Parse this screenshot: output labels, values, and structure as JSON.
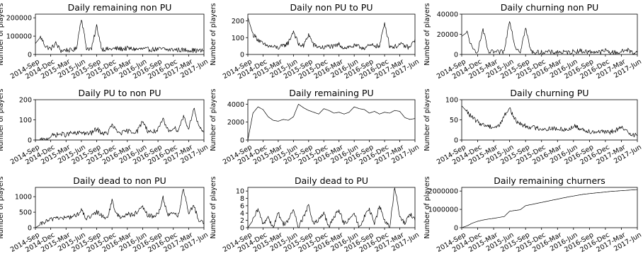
{
  "line_color": "#000000",
  "x_tick_labels": [
    "2014-Sep",
    "2014-Dec",
    "2015-Mar",
    "2015-Jun",
    "2015-Sep",
    "2015-Dec",
    "2016-Mar",
    "2016-Jun",
    "2016-Sep",
    "2016-Dec",
    "2017-Mar",
    "2017-Jun"
  ],
  "chart_data": [
    {
      "id": "remaining_non_pu",
      "type": "line",
      "title": "Daily remaining non PU",
      "xlabel": "",
      "ylabel": "Number of players",
      "x_range": [
        "2014-Sep",
        "2017-Jun"
      ],
      "ylim": [
        0,
        220000
      ],
      "y_ticks": [
        0,
        100000,
        200000
      ],
      "y_tick_labels": [
        "0",
        "100000",
        "200000"
      ],
      "x": [
        "2014-Sep",
        "2014-Oct",
        "2014-Nov",
        "2014-Dec",
        "2015-Jan",
        "2015-Feb",
        "2015-Mar",
        "2015-Apr",
        "2015-May",
        "2015-Jun",
        "2015-Jul",
        "2015-Aug",
        "2015-Sep",
        "2015-Oct",
        "2015-Nov",
        "2015-Dec",
        "2016-Jan",
        "2016-Feb",
        "2016-Mar",
        "2016-Apr",
        "2016-May",
        "2016-Jun",
        "2016-Jul",
        "2016-Aug",
        "2016-Sep",
        "2016-Oct",
        "2016-Nov",
        "2016-Dec",
        "2017-Jan",
        "2017-Feb",
        "2017-Mar",
        "2017-Apr",
        "2017-May",
        "2017-Jun"
      ],
      "values": [
        60000,
        95000,
        45000,
        30000,
        60000,
        20000,
        25000,
        22000,
        30000,
        200000,
        35000,
        30000,
        155000,
        30000,
        28000,
        30000,
        32000,
        30000,
        33000,
        30000,
        28000,
        30000,
        27000,
        28000,
        28000,
        30000,
        25000,
        27000,
        25000,
        24000,
        25000,
        22000,
        20000,
        20000
      ]
    },
    {
      "id": "non_pu_to_pu",
      "type": "line",
      "title": "Daily non PU to PU",
      "xlabel": "",
      "ylabel": "Number of players",
      "x_range": [
        "2014-Sep",
        "2017-Jun"
      ],
      "ylim": [
        0,
        240
      ],
      "y_ticks": [
        0,
        100,
        200
      ],
      "y_tick_labels": [
        "0",
        "100",
        "200"
      ],
      "x": [
        "2014-Sep",
        "2014-Oct",
        "2014-Nov",
        "2014-Dec",
        "2015-Jan",
        "2015-Feb",
        "2015-Mar",
        "2015-Apr",
        "2015-May",
        "2015-Jun",
        "2015-Jul",
        "2015-Aug",
        "2015-Sep",
        "2015-Oct",
        "2015-Nov",
        "2015-Dec",
        "2016-Jan",
        "2016-Feb",
        "2016-Mar",
        "2016-Apr",
        "2016-May",
        "2016-Jun",
        "2016-Jul",
        "2016-Aug",
        "2016-Sep",
        "2016-Oct",
        "2016-Nov",
        "2016-Dec",
        "2017-Jan",
        "2017-Feb",
        "2017-Mar",
        "2017-Apr",
        "2017-May",
        "2017-Jun"
      ],
      "values": [
        220,
        120,
        90,
        60,
        50,
        45,
        40,
        50,
        70,
        140,
        60,
        50,
        120,
        55,
        45,
        40,
        50,
        45,
        60,
        40,
        45,
        50,
        45,
        40,
        50,
        55,
        45,
        190,
        50,
        45,
        60,
        50,
        40,
        90
      ]
    },
    {
      "id": "churning_non_pu",
      "type": "line",
      "title": "Daily churning non PU",
      "xlabel": "",
      "ylabel": "Number of players",
      "x_range": [
        "2014-Sep",
        "2017-Jun"
      ],
      "ylim": [
        0,
        40000
      ],
      "y_ticks": [
        0,
        20000,
        40000
      ],
      "y_tick_labels": [
        "0",
        "20000",
        "40000"
      ],
      "x": [
        "2014-Sep",
        "2014-Oct",
        "2014-Nov",
        "2014-Dec",
        "2015-Jan",
        "2015-Feb",
        "2015-Mar",
        "2015-Apr",
        "2015-May",
        "2015-Jun",
        "2015-Jul",
        "2015-Aug",
        "2015-Sep",
        "2015-Oct",
        "2015-Nov",
        "2015-Dec",
        "2016-Jan",
        "2016-Feb",
        "2016-Mar",
        "2016-Apr",
        "2016-May",
        "2016-Jun",
        "2016-Jul",
        "2016-Aug",
        "2016-Sep",
        "2016-Oct",
        "2016-Nov",
        "2016-Dec",
        "2017-Jan",
        "2017-Feb",
        "2017-Mar",
        "2017-Apr",
        "2017-May",
        "2017-Jun"
      ],
      "values": [
        18000,
        22000,
        5000,
        3000,
        25000,
        2000,
        2500,
        2000,
        3000,
        35000,
        8000,
        3000,
        26000,
        3000,
        2000,
        2000,
        2500,
        2000,
        2500,
        2000,
        2000,
        3000,
        3500,
        3000,
        2500,
        3000,
        2000,
        4000,
        2000,
        2000,
        2500,
        5000,
        2000,
        2000
      ]
    },
    {
      "id": "pu_to_non_pu",
      "type": "line",
      "title": "Daily PU to non PU",
      "xlabel": "",
      "ylabel": "Number of players",
      "x_range": [
        "2014-Sep",
        "2017-Jun"
      ],
      "ylim": [
        0,
        200
      ],
      "y_ticks": [
        0,
        100,
        200
      ],
      "y_tick_labels": [
        "0",
        "100",
        "200"
      ],
      "x": [
        "2014-Sep",
        "2014-Oct",
        "2014-Nov",
        "2014-Dec",
        "2015-Jan",
        "2015-Feb",
        "2015-Mar",
        "2015-Apr",
        "2015-May",
        "2015-Jun",
        "2015-Jul",
        "2015-Aug",
        "2015-Sep",
        "2015-Oct",
        "2015-Nov",
        "2015-Dec",
        "2016-Jan",
        "2016-Feb",
        "2016-Mar",
        "2016-Apr",
        "2016-May",
        "2016-Jun",
        "2016-Jul",
        "2016-Aug",
        "2016-Sep",
        "2016-Oct",
        "2016-Nov",
        "2016-Dec",
        "2017-Jan",
        "2017-Feb",
        "2017-Mar",
        "2017-Apr",
        "2017-May",
        "2017-Jun"
      ],
      "values": [
        0,
        0,
        0,
        20,
        25,
        30,
        25,
        35,
        30,
        40,
        30,
        35,
        55,
        35,
        30,
        75,
        40,
        35,
        45,
        40,
        45,
        95,
        45,
        40,
        50,
        100,
        45,
        60,
        50,
        120,
        55,
        160,
        60,
        40
      ]
    },
    {
      "id": "remaining_pu",
      "type": "line",
      "title": "Daily remaining PU",
      "xlabel": "",
      "ylabel": "Number of players",
      "x_range": [
        "2014-Sep",
        "2017-Jun"
      ],
      "ylim": [
        0,
        4500
      ],
      "y_ticks": [
        0,
        2000,
        4000
      ],
      "y_tick_labels": [
        "0",
        "2000",
        "4000"
      ],
      "x": [
        "2014-Sep",
        "2014-Oct",
        "2014-Nov",
        "2014-Dec",
        "2015-Jan",
        "2015-Feb",
        "2015-Mar",
        "2015-Apr",
        "2015-May",
        "2015-Jun",
        "2015-Jul",
        "2015-Aug",
        "2015-Sep",
        "2015-Oct",
        "2015-Nov",
        "2015-Dec",
        "2016-Jan",
        "2016-Feb",
        "2016-Mar",
        "2016-Apr",
        "2016-May",
        "2016-Jun",
        "2016-Jul",
        "2016-Aug",
        "2016-Sep",
        "2016-Oct",
        "2016-Nov",
        "2016-Dec",
        "2017-Jan",
        "2017-Feb",
        "2017-Mar",
        "2017-Apr",
        "2017-May",
        "2017-Jun"
      ],
      "values": [
        0,
        3000,
        3700,
        3400,
        2600,
        2200,
        2100,
        2300,
        2200,
        2600,
        4000,
        3600,
        3300,
        3100,
        2900,
        3500,
        3300,
        3000,
        3100,
        2900,
        3100,
        3700,
        3500,
        3400,
        3000,
        3200,
        2900,
        3100,
        3000,
        3300,
        3200,
        2500,
        2300,
        2400
      ]
    },
    {
      "id": "churning_pu",
      "type": "line",
      "title": "Daily churning PU",
      "xlabel": "",
      "ylabel": "Number of players",
      "x_range": [
        "2014-Sep",
        "2017-Jun"
      ],
      "ylim": [
        0,
        100
      ],
      "y_ticks": [
        0,
        50,
        100
      ],
      "y_tick_labels": [
        "0",
        "50",
        "100"
      ],
      "x": [
        "2014-Sep",
        "2014-Oct",
        "2014-Nov",
        "2014-Dec",
        "2015-Jan",
        "2015-Feb",
        "2015-Mar",
        "2015-Apr",
        "2015-May",
        "2015-Jun",
        "2015-Jul",
        "2015-Aug",
        "2015-Sep",
        "2015-Oct",
        "2015-Nov",
        "2015-Dec",
        "2016-Jan",
        "2016-Feb",
        "2016-Mar",
        "2016-Apr",
        "2016-May",
        "2016-Jun",
        "2016-Jul",
        "2016-Aug",
        "2016-Sep",
        "2016-Oct",
        "2016-Nov",
        "2016-Dec",
        "2017-Jan",
        "2017-Feb",
        "2017-Mar",
        "2017-Apr",
        "2017-May",
        "2017-Jun"
      ],
      "values": [
        85,
        70,
        55,
        45,
        38,
        35,
        32,
        35,
        60,
        80,
        50,
        40,
        35,
        32,
        30,
        28,
        27,
        30,
        25,
        28,
        25,
        35,
        30,
        25,
        22,
        20,
        22,
        18,
        20,
        25,
        30,
        22,
        15,
        10
      ]
    },
    {
      "id": "dead_to_non_pu",
      "type": "line",
      "title": "Daily dead to non PU",
      "xlabel": "",
      "ylabel": "Number of players",
      "x_range": [
        "2014-Sep",
        "2017-Jun"
      ],
      "ylim": [
        0,
        1300
      ],
      "y_ticks": [
        0,
        500,
        1000
      ],
      "y_tick_labels": [
        "0",
        "500",
        "1000"
      ],
      "x": [
        "2014-Sep",
        "2014-Oct",
        "2014-Nov",
        "2014-Dec",
        "2015-Jan",
        "2015-Feb",
        "2015-Mar",
        "2015-Apr",
        "2015-May",
        "2015-Jun",
        "2015-Jul",
        "2015-Aug",
        "2015-Sep",
        "2015-Oct",
        "2015-Nov",
        "2015-Dec",
        "2016-Jan",
        "2016-Feb",
        "2016-Mar",
        "2016-Apr",
        "2016-May",
        "2016-Jun",
        "2016-Jul",
        "2016-Aug",
        "2016-Sep",
        "2016-Oct",
        "2016-Nov",
        "2016-Dec",
        "2017-Jan",
        "2017-Feb",
        "2017-Mar",
        "2017-Apr",
        "2017-May",
        "2017-Jun"
      ],
      "values": [
        0,
        100,
        200,
        250,
        350,
        300,
        320,
        350,
        400,
        550,
        300,
        350,
        500,
        400,
        300,
        850,
        400,
        350,
        450,
        400,
        500,
        650,
        400,
        350,
        450,
        950,
        400,
        500,
        400,
        1250,
        450,
        700,
        250,
        150
      ]
    },
    {
      "id": "dead_to_pu",
      "type": "line",
      "title": "Daily dead to PU",
      "xlabel": "",
      "ylabel": "Number of players",
      "x_range": [
        "2014-Sep",
        "2017-Jun"
      ],
      "ylim": [
        0,
        11
      ],
      "y_ticks": [
        0,
        2,
        4,
        6,
        8,
        10
      ],
      "y_tick_labels": [
        "0",
        "2",
        "4",
        "6",
        "8",
        "10"
      ],
      "x": [
        "2014-Sep",
        "2014-Oct",
        "2014-Nov",
        "2014-Dec",
        "2015-Jan",
        "2015-Feb",
        "2015-Mar",
        "2015-Apr",
        "2015-May",
        "2015-Jun",
        "2015-Jul",
        "2015-Aug",
        "2015-Sep",
        "2015-Oct",
        "2015-Nov",
        "2015-Dec",
        "2016-Jan",
        "2016-Feb",
        "2016-Mar",
        "2016-Apr",
        "2016-May",
        "2016-Jun",
        "2016-Jul",
        "2016-Aug",
        "2016-Sep",
        "2016-Oct",
        "2016-Nov",
        "2016-Dec",
        "2017-Jan",
        "2017-Feb",
        "2017-Mar",
        "2017-Apr",
        "2017-May",
        "2017-Jun"
      ],
      "values": [
        0,
        2,
        5,
        1,
        3,
        0,
        4,
        1,
        2,
        5,
        0,
        3,
        6,
        1,
        2,
        4,
        0,
        3,
        5,
        1,
        2,
        4,
        0,
        3,
        5,
        1,
        6,
        2,
        0,
        11,
        3,
        1,
        4,
        2
      ]
    },
    {
      "id": "remaining_churners",
      "type": "line",
      "title": "Daily remaining churners",
      "xlabel": "",
      "ylabel": "Number of players",
      "x_range": [
        "2014-Sep",
        "2017-Jun"
      ],
      "ylim": [
        0,
        2200000
      ],
      "y_ticks": [
        0,
        1000000,
        2000000
      ],
      "y_tick_labels": [
        "0",
        "1000000",
        "2000000"
      ],
      "x": [
        "2014-Sep",
        "2014-Oct",
        "2014-Nov",
        "2014-Dec",
        "2015-Jan",
        "2015-Feb",
        "2015-Mar",
        "2015-Apr",
        "2015-May",
        "2015-Jun",
        "2015-Jul",
        "2015-Aug",
        "2015-Sep",
        "2015-Oct",
        "2015-Nov",
        "2015-Dec",
        "2016-Jan",
        "2016-Feb",
        "2016-Mar",
        "2016-Apr",
        "2016-May",
        "2016-Jun",
        "2016-Jul",
        "2016-Aug",
        "2016-Sep",
        "2016-Oct",
        "2016-Nov",
        "2016-Dec",
        "2017-Jan",
        "2017-Feb",
        "2017-Mar",
        "2017-Apr",
        "2017-May",
        "2017-Jun"
      ],
      "values": [
        0,
        100000,
        250000,
        350000,
        420000,
        470000,
        510000,
        560000,
        610000,
        900000,
        940000,
        980000,
        1200000,
        1260000,
        1320000,
        1380000,
        1440000,
        1500000,
        1560000,
        1620000,
        1680000,
        1730000,
        1780000,
        1830000,
        1860000,
        1890000,
        1920000,
        1950000,
        1980000,
        2000000,
        2020000,
        2040000,
        2060000,
        2080000
      ]
    }
  ]
}
